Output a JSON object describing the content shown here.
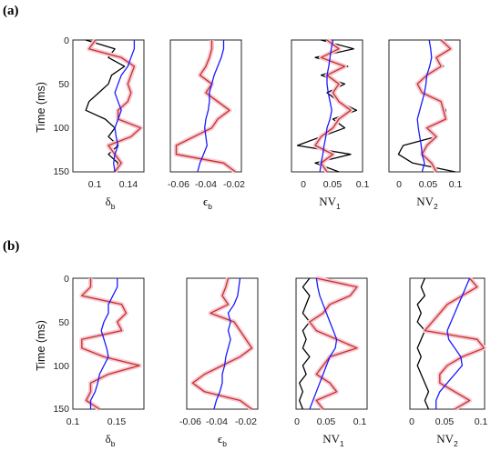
{
  "panels": [
    {
      "label": "(a)",
      "y_label": "Time (ms)",
      "y_ticks": [
        "0",
        "50",
        "100",
        "150"
      ],
      "subplots": [
        {
          "xlabel": {
            "base": "δ",
            "sub": "b"
          },
          "x_ticks": [
            "0.1",
            "0.14"
          ]
        },
        {
          "xlabel": {
            "base": "ϵ",
            "sub": "b"
          },
          "x_ticks": [
            "-0.06",
            "-0.04",
            "-0.02"
          ]
        },
        {
          "xlabel": {
            "base": "NV",
            "sub": "1"
          },
          "x_ticks": [
            "0",
            "0.05",
            "0.1"
          ]
        },
        {
          "xlabel": {
            "base": "NV",
            "sub": "2"
          },
          "x_ticks": [
            "0",
            "0.05",
            "0.1"
          ]
        }
      ]
    },
    {
      "label": "(b)",
      "y_label": "Time (ms)",
      "y_ticks": [
        "0",
        "50",
        "100",
        "150"
      ],
      "subplots": [
        {
          "xlabel": {
            "base": "δ",
            "sub": "b"
          },
          "x_ticks": [
            "0.1",
            "0.15"
          ]
        },
        {
          "xlabel": {
            "base": "ϵ",
            "sub": "b"
          },
          "x_ticks": [
            "-0.06",
            "-0.04",
            "-0.02"
          ]
        },
        {
          "xlabel": {
            "base": "NV",
            "sub": "1"
          },
          "x_ticks": [
            "0",
            "0.05",
            "0.1"
          ]
        },
        {
          "xlabel": {
            "base": "NV",
            "sub": "2"
          },
          "x_ticks": [
            "0",
            "0.05",
            "0.1"
          ]
        }
      ]
    }
  ],
  "chart_data": [
    {
      "type": "line",
      "panel": "(a)",
      "xlabel": "δb",
      "ylabel": "Time (ms)",
      "xlim": [
        0.065,
        0.175
      ],
      "ylim": [
        0,
        150
      ],
      "y_inverted": true,
      "colors": {
        "black": "#000000",
        "red": "#c8321e",
        "blue": "#1a1aff",
        "band": "#f5c8d8"
      },
      "time": [
        0,
        10,
        20,
        30,
        40,
        50,
        60,
        70,
        80,
        90,
        100,
        110,
        120,
        130,
        140,
        150
      ],
      "series": [
        {
          "color": "black",
          "values": [
            0.085,
            0.13,
            0.12,
            0.145,
            0.125,
            0.12,
            0.105,
            0.09,
            0.085,
            0.115,
            0.13,
            0.12,
            0.135,
            0.12,
            0.135,
            0.13
          ]
        },
        {
          "color": "red",
          "values": [
            0.1,
            0.09,
            0.14,
            0.16,
            0.155,
            0.15,
            0.155,
            0.15,
            0.135,
            0.135,
            0.17,
            0.155,
            0.12,
            0.13,
            0.14,
            0.13
          ]
        },
        {
          "color": "blue",
          "values": [
            0.16,
            0.16,
            0.155,
            0.15,
            0.14,
            0.135,
            0.13,
            0.135,
            0.14,
            0.135,
            0.13,
            0.132,
            0.135,
            0.13,
            0.128,
            0.13
          ]
        }
      ]
    },
    {
      "type": "line",
      "panel": "(a)",
      "xlabel": "ϵb",
      "ylabel": "Time (ms)",
      "xlim": [
        -0.065,
        -0.005
      ],
      "ylim": [
        0,
        150
      ],
      "y_inverted": true,
      "colors": {
        "black": "#000000",
        "red": "#c8321e",
        "blue": "#1a1aff",
        "band": "#f5c8d8"
      },
      "time": [
        0,
        10,
        20,
        30,
        40,
        50,
        60,
        70,
        80,
        90,
        100,
        110,
        120,
        130,
        140,
        150
      ],
      "series": [
        {
          "color": "black",
          "values": [
            -0.03,
            -0.03,
            -0.032,
            -0.035,
            -0.04,
            -0.03,
            -0.035,
            -0.025,
            -0.015,
            -0.025,
            -0.03,
            -0.045,
            -0.06,
            -0.06,
            -0.02,
            -0.01
          ]
        },
        {
          "color": "red",
          "values": [
            -0.03,
            -0.03,
            -0.032,
            -0.035,
            -0.04,
            -0.03,
            -0.035,
            -0.025,
            -0.015,
            -0.025,
            -0.03,
            -0.045,
            -0.06,
            -0.06,
            -0.02,
            -0.01
          ]
        },
        {
          "color": "blue",
          "values": [
            -0.02,
            -0.02,
            -0.022,
            -0.025,
            -0.028,
            -0.03,
            -0.032,
            -0.032,
            -0.033,
            -0.035,
            -0.036,
            -0.035,
            -0.034,
            -0.037,
            -0.04,
            -0.042
          ]
        }
      ]
    },
    {
      "type": "line",
      "panel": "(a)",
      "xlabel": "NV1",
      "ylabel": "Time (ms)",
      "xlim": [
        -0.02,
        0.1
      ],
      "ylim": [
        0,
        150
      ],
      "y_inverted": true,
      "colors": {
        "black": "#000000",
        "red": "#c8321e",
        "blue": "#1a1aff",
        "band": "#f5c8d8"
      },
      "time": [
        0,
        10,
        20,
        30,
        40,
        50,
        60,
        70,
        80,
        90,
        100,
        110,
        120,
        130,
        140,
        150
      ],
      "series": [
        {
          "color": "black",
          "values": [
            0.03,
            0.085,
            0.02,
            0.075,
            0.03,
            0.07,
            0.04,
            0.06,
            0.09,
            0.05,
            0.07,
            0.03,
            -0.01,
            0.08,
            0.02,
            0.06
          ]
        },
        {
          "color": "red",
          "values": [
            0.04,
            0.06,
            0.03,
            0.07,
            0.04,
            0.06,
            0.05,
            0.06,
            0.08,
            0.06,
            0.05,
            0.03,
            0.02,
            0.05,
            0.03,
            0.04
          ]
        },
        {
          "color": "blue",
          "values": [
            0.05,
            0.047,
            0.045,
            0.043,
            0.04,
            0.04,
            0.042,
            0.045,
            0.048,
            0.045,
            0.04,
            0.038,
            0.035,
            0.033,
            0.03,
            0.028
          ]
        }
      ]
    },
    {
      "type": "line",
      "panel": "(a)",
      "xlabel": "NV2",
      "ylabel": "Time (ms)",
      "xlim": [
        -0.02,
        0.13
      ],
      "ylim": [
        0,
        150
      ],
      "y_inverted": true,
      "colors": {
        "black": "#000000",
        "red": "#c8321e",
        "blue": "#1a1aff",
        "band": "#f5c8d8"
      },
      "time": [
        0,
        10,
        20,
        30,
        40,
        50,
        60,
        70,
        80,
        90,
        100,
        110,
        120,
        130,
        140,
        150
      ],
      "series": [
        {
          "color": "black",
          "values": [
            0.09,
            0.11,
            0.08,
            0.095,
            0.06,
            0.04,
            0.05,
            0.09,
            0.1,
            0.1,
            0.06,
            0.08,
            0.01,
            0.0,
            0.03,
            0.12
          ]
        },
        {
          "color": "red",
          "values": [
            0.09,
            0.11,
            0.08,
            0.09,
            0.06,
            0.04,
            0.05,
            0.09,
            0.095,
            0.1,
            0.06,
            0.08,
            0.06,
            0.05,
            0.07,
            0.08
          ]
        },
        {
          "color": "blue",
          "values": [
            0.065,
            0.068,
            0.07,
            0.066,
            0.06,
            0.058,
            0.055,
            0.05,
            0.045,
            0.04,
            0.042,
            0.045,
            0.048,
            0.05,
            0.055,
            0.05
          ]
        }
      ]
    },
    {
      "type": "line",
      "panel": "(b)",
      "xlabel": "δb",
      "ylabel": "Time (ms)",
      "xlim": [
        0.1,
        0.18
      ],
      "ylim": [
        0,
        150
      ],
      "y_inverted": true,
      "colors": {
        "black": "#000000",
        "red": "#c8321e",
        "blue": "#1a1aff",
        "band": "#f5c8d8"
      },
      "time": [
        0,
        10,
        20,
        30,
        40,
        50,
        60,
        70,
        80,
        90,
        100,
        110,
        120,
        130,
        140,
        150
      ],
      "series": [
        {
          "color": "black",
          "values": [
            0.12,
            0.12,
            0.11,
            0.155,
            0.16,
            0.15,
            0.155,
            0.11,
            0.11,
            0.135,
            0.175,
            0.14,
            0.12,
            0.12,
            0.115,
            0.13
          ]
        },
        {
          "color": "red",
          "values": [
            0.12,
            0.12,
            0.11,
            0.155,
            0.16,
            0.15,
            0.155,
            0.11,
            0.11,
            0.135,
            0.175,
            0.14,
            0.12,
            0.12,
            0.115,
            0.13
          ]
        },
        {
          "color": "blue",
          "values": [
            0.15,
            0.15,
            0.145,
            0.14,
            0.14,
            0.135,
            0.132,
            0.135,
            0.138,
            0.14,
            0.135,
            0.13,
            0.128,
            0.125,
            0.12,
            0.12
          ]
        }
      ]
    },
    {
      "type": "line",
      "panel": "(b)",
      "xlabel": "ϵb",
      "ylabel": "Time (ms)",
      "xlim": [
        -0.065,
        -0.005
      ],
      "ylim": [
        0,
        150
      ],
      "y_inverted": true,
      "colors": {
        "black": "#000000",
        "red": "#c8321e",
        "blue": "#1a1aff",
        "band": "#f5c8d8"
      },
      "time": [
        0,
        10,
        20,
        30,
        40,
        50,
        60,
        70,
        80,
        90,
        100,
        110,
        120,
        130,
        140,
        150
      ],
      "series": [
        {
          "color": "black",
          "values": [
            -0.03,
            -0.032,
            -0.035,
            -0.03,
            -0.045,
            -0.025,
            -0.02,
            -0.015,
            -0.01,
            -0.02,
            -0.035,
            -0.05,
            -0.06,
            -0.05,
            -0.02,
            -0.01
          ]
        },
        {
          "color": "red",
          "values": [
            -0.03,
            -0.032,
            -0.035,
            -0.03,
            -0.045,
            -0.025,
            -0.02,
            -0.015,
            -0.01,
            -0.02,
            -0.035,
            -0.05,
            -0.06,
            -0.05,
            -0.02,
            -0.01
          ]
        },
        {
          "color": "blue",
          "values": [
            -0.02,
            -0.021,
            -0.022,
            -0.025,
            -0.03,
            -0.028,
            -0.03,
            -0.028,
            -0.03,
            -0.032,
            -0.033,
            -0.035,
            -0.035,
            -0.037,
            -0.04,
            -0.042
          ]
        }
      ]
    },
    {
      "type": "line",
      "panel": "(b)",
      "xlabel": "NV1",
      "ylabel": "Time (ms)",
      "xlim": [
        0.0,
        0.105
      ],
      "ylim": [
        0,
        150
      ],
      "y_inverted": true,
      "colors": {
        "black": "#000000",
        "red": "#c8321e",
        "blue": "#1a1aff",
        "band": "#f5c8d8"
      },
      "time": [
        0,
        10,
        20,
        30,
        40,
        50,
        60,
        70,
        80,
        90,
        100,
        110,
        120,
        130,
        140,
        150
      ],
      "series": [
        {
          "color": "black",
          "values": [
            0.02,
            0.01,
            0.02,
            0.015,
            0.01,
            0.02,
            0.01,
            0.015,
            0.01,
            0.02,
            0.01,
            0.015,
            0.005,
            0.01,
            0.005,
            0.01
          ]
        },
        {
          "color": "red",
          "values": [
            0.03,
            0.09,
            0.08,
            0.05,
            0.04,
            0.02,
            0.03,
            0.06,
            0.09,
            0.05,
            0.04,
            0.03,
            0.05,
            0.06,
            0.03,
            0.04
          ]
        },
        {
          "color": "blue",
          "values": [
            0.03,
            0.032,
            0.035,
            0.04,
            0.045,
            0.05,
            0.055,
            0.06,
            0.058,
            0.05,
            0.045,
            0.04,
            0.035,
            0.03,
            0.025,
            0.02
          ]
        }
      ]
    },
    {
      "type": "line",
      "panel": "(b)",
      "xlabel": "NV2",
      "ylabel": "Time (ms)",
      "xlim": [
        0.0,
        0.1
      ],
      "ylim": [
        0,
        150
      ],
      "y_inverted": true,
      "colors": {
        "black": "#000000",
        "red": "#c8321e",
        "blue": "#1a1aff",
        "band": "#f5c8d8"
      },
      "time": [
        0,
        10,
        20,
        30,
        40,
        50,
        60,
        70,
        80,
        90,
        100,
        110,
        120,
        130,
        140,
        150
      ],
      "series": [
        {
          "color": "black",
          "values": [
            0.02,
            0.015,
            0.02,
            0.01,
            0.015,
            0.01,
            0.02,
            0.015,
            0.01,
            0.015,
            0.01,
            0.015,
            0.02,
            0.025,
            0.02,
            0.025
          ]
        },
        {
          "color": "red",
          "values": [
            0.08,
            0.09,
            0.07,
            0.05,
            0.04,
            0.03,
            0.02,
            0.09,
            0.1,
            0.07,
            0.05,
            0.04,
            0.04,
            0.06,
            0.08,
            0.06
          ]
        },
        {
          "color": "blue",
          "values": [
            0.08,
            0.075,
            0.07,
            0.065,
            0.06,
            0.055,
            0.05,
            0.052,
            0.06,
            0.068,
            0.07,
            0.06,
            0.05,
            0.04,
            0.035,
            0.035
          ]
        }
      ]
    }
  ]
}
